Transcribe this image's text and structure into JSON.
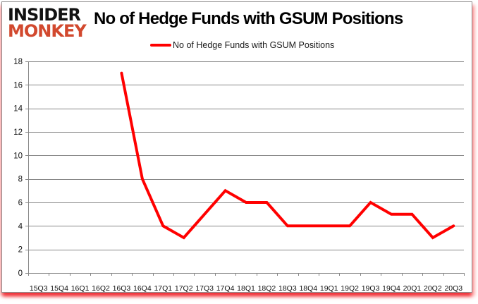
{
  "logo": {
    "line1": "INSIDER",
    "line2": "MONKEY",
    "line1_color": "#111111",
    "line2_color": "#d2492e"
  },
  "header": {
    "title": "No of Hedge Funds with GSUM Positions"
  },
  "legend": {
    "label": "No of Hedge Funds with GSUM Positions",
    "swatch_color": "#ff0000"
  },
  "chart_data": {
    "type": "line",
    "title": "No of Hedge Funds with GSUM Positions",
    "categories": [
      "15Q3",
      "15Q4",
      "16Q1",
      "16Q2",
      "16Q3",
      "16Q4",
      "17Q1",
      "17Q2",
      "17Q3",
      "17Q4",
      "18Q1",
      "18Q2",
      "18Q3",
      "18Q4",
      "19Q1",
      "19Q2",
      "19Q3",
      "19Q4",
      "20Q1",
      "20Q2",
      "20Q3"
    ],
    "series": [
      {
        "name": "No of Hedge Funds with GSUM Positions",
        "color": "#ff0000",
        "values": [
          null,
          null,
          null,
          null,
          17,
          8,
          4,
          3,
          5,
          7,
          6,
          6,
          4,
          4,
          4,
          4,
          6,
          5,
          5,
          3,
          4
        ]
      }
    ],
    "xlabel": "",
    "ylabel": "",
    "ylim": [
      0,
      18
    ],
    "yticks": [
      0,
      2,
      4,
      6,
      8,
      10,
      12,
      14,
      16,
      18
    ],
    "grid": true,
    "gridline_color": "#878787",
    "legend_position": "top"
  }
}
